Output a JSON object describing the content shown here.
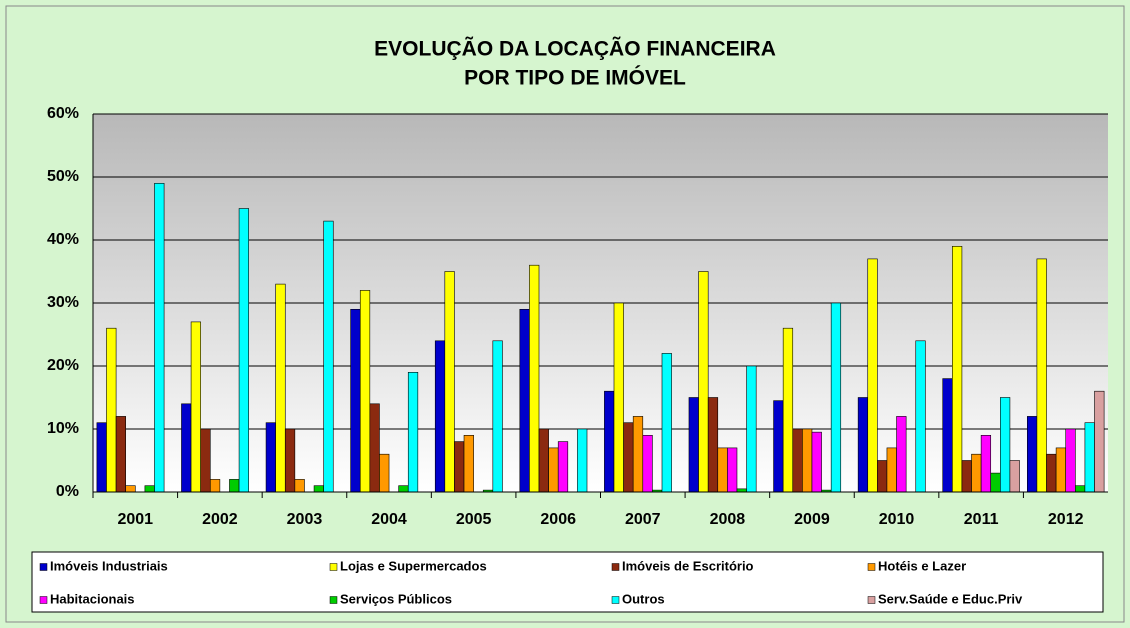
{
  "chart_data": {
    "type": "bar",
    "title": [
      "EVOLUÇÃO  DA LOCAÇÃO FINANCEIRA",
      "POR  TIPO DE IMÓVEL"
    ],
    "categories": [
      "2001",
      "2002",
      "2003",
      "2004",
      "2005",
      "2006",
      "2007",
      "2008",
      "2009",
      "2010",
      "2011",
      "2012"
    ],
    "series": [
      {
        "name": "Imóveis Industriais",
        "color": "#0000cc",
        "values": [
          11,
          14,
          11,
          29,
          24,
          29,
          16,
          15,
          14.5,
          15,
          18,
          12
        ]
      },
      {
        "name": "Lojas e Supermercados",
        "color": "#ffff00",
        "values": [
          26,
          27,
          33,
          32,
          35,
          36,
          30,
          35,
          26,
          37,
          39,
          37
        ]
      },
      {
        "name": "Imóveis de Escritório",
        "color": "#8b2a10",
        "values": [
          12,
          10,
          10,
          14,
          8,
          10,
          11,
          15,
          10,
          5,
          5,
          6
        ]
      },
      {
        "name": "Hotéis e Lazer",
        "color": "#ff9900",
        "values": [
          1,
          2,
          2,
          6,
          9,
          7,
          12,
          7,
          10,
          7,
          6,
          7
        ]
      },
      {
        "name": "Habitacionais",
        "color": "#ff00ff",
        "values": [
          0,
          0,
          0,
          0,
          0,
          8,
          9,
          7,
          9.5,
          12,
          9,
          10
        ]
      },
      {
        "name": "Serviços Públicos",
        "color": "#00cc00",
        "values": [
          1,
          2,
          1,
          1,
          0.3,
          0,
          0.3,
          0.5,
          0.3,
          0,
          3,
          1
        ]
      },
      {
        "name": "Outros",
        "color": "#00ffff",
        "values": [
          49,
          45,
          43,
          19,
          24,
          10,
          22,
          20,
          30,
          24,
          15,
          11
        ]
      },
      {
        "name": "Serv.Saúde e Educ.Priv",
        "color": "#d9a0a0",
        "values": [
          0,
          0,
          0,
          0,
          0,
          0,
          0,
          0,
          0,
          0,
          5,
          16
        ]
      }
    ],
    "ylim": [
      0,
      60
    ],
    "yticks": [
      {
        "value": 0,
        "label": "0%"
      },
      {
        "value": 10,
        "label": "10%"
      },
      {
        "value": 20,
        "label": "20%"
      },
      {
        "value": 30,
        "label": "30%"
      },
      {
        "value": 40,
        "label": "40%"
      },
      {
        "value": 50,
        "label": "50%"
      },
      {
        "value": 60,
        "label": "60%"
      }
    ],
    "grid": true
  }
}
